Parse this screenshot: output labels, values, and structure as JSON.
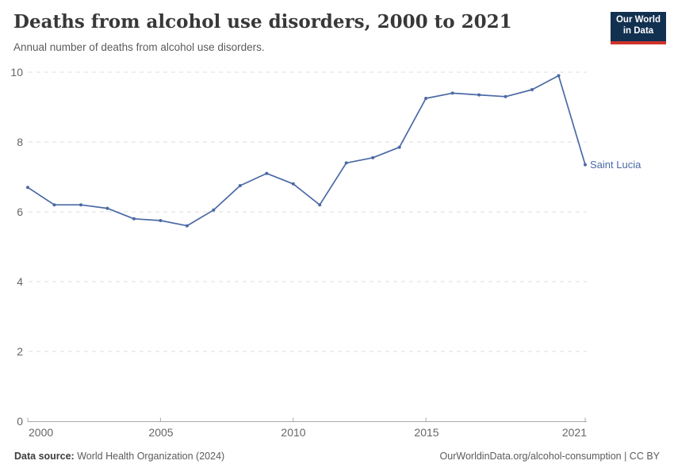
{
  "header": {
    "title": "Deaths from alcohol use disorders, 2000 to 2021",
    "subtitle": "Annual number of deaths from alcohol use disorders."
  },
  "logo": {
    "line1": "Our World",
    "line2": "in Data",
    "bg_color": "#12304f",
    "accent_color": "#d0342c"
  },
  "chart_data": {
    "type": "line",
    "title": "Deaths from alcohol use disorders, 2000 to 2021",
    "series_label": "Saint Lucia",
    "x": [
      2000,
      2001,
      2002,
      2003,
      2004,
      2005,
      2006,
      2007,
      2008,
      2009,
      2010,
      2011,
      2012,
      2013,
      2014,
      2015,
      2016,
      2017,
      2018,
      2019,
      2020,
      2021
    ],
    "values": [
      6.7,
      6.2,
      6.2,
      6.1,
      5.8,
      5.75,
      5.6,
      6.05,
      6.75,
      7.1,
      6.8,
      6.2,
      7.4,
      7.55,
      7.85,
      9.25,
      9.4,
      9.35,
      9.3,
      9.5,
      9.9,
      7.35
    ],
    "xticks": [
      2000,
      2005,
      2010,
      2015,
      2021
    ],
    "yticks": [
      0,
      2,
      4,
      6,
      8,
      10
    ],
    "xlim": [
      2000,
      2021
    ],
    "ylim": [
      0,
      10
    ],
    "line_color": "#4b69a5",
    "grid": true,
    "grid_style": "dashed",
    "legend_position": "end-of-line"
  },
  "footer": {
    "source_label": "Data source:",
    "source_text": " World Health Organization (2024)",
    "link_text": "OurWorldinData.org/alcohol-consumption | CC BY"
  }
}
